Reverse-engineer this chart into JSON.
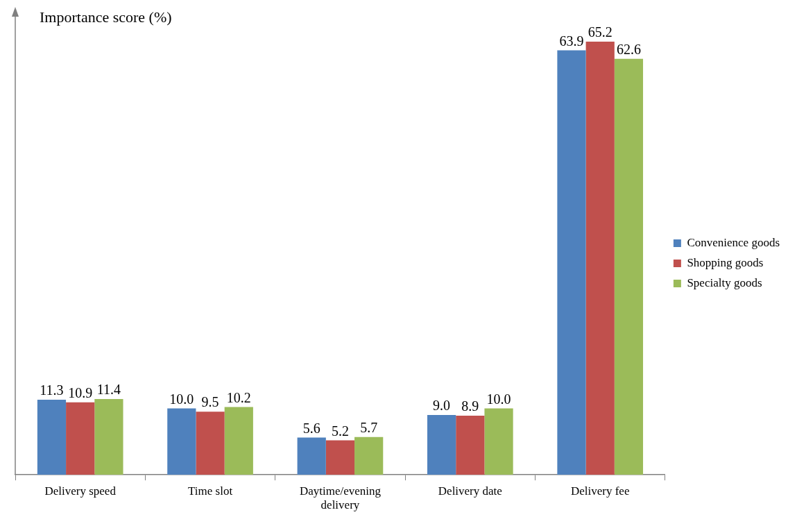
{
  "chart_data": {
    "type": "bar",
    "ylabel": "Importance score (%)",
    "categories": [
      "Delivery speed",
      "Time slot",
      "Daytime/evening delivery",
      "Delivery date",
      "Delivery fee"
    ],
    "series": [
      {
        "name": "Convenience goods",
        "color": "#4f81bd",
        "values": [
          11.3,
          10.0,
          5.6,
          9.0,
          63.9
        ],
        "value_labels": [
          "11.3",
          "10.0",
          "5.6",
          "9.0",
          "63.9"
        ]
      },
      {
        "name": "Shopping goods",
        "color": "#c0504d",
        "values": [
          10.9,
          9.5,
          5.2,
          8.9,
          65.2
        ],
        "value_labels": [
          "10.9",
          "9.5",
          "5.2",
          "8.9",
          "65.2"
        ]
      },
      {
        "name": "Specialty goods",
        "color": "#9bbb59",
        "values": [
          11.4,
          10.2,
          5.7,
          10.0,
          62.6
        ],
        "value_labels": [
          "11.4",
          "10.2",
          "5.7",
          "10.0",
          "62.6"
        ]
      }
    ],
    "legend": "right",
    "grid": false
  }
}
